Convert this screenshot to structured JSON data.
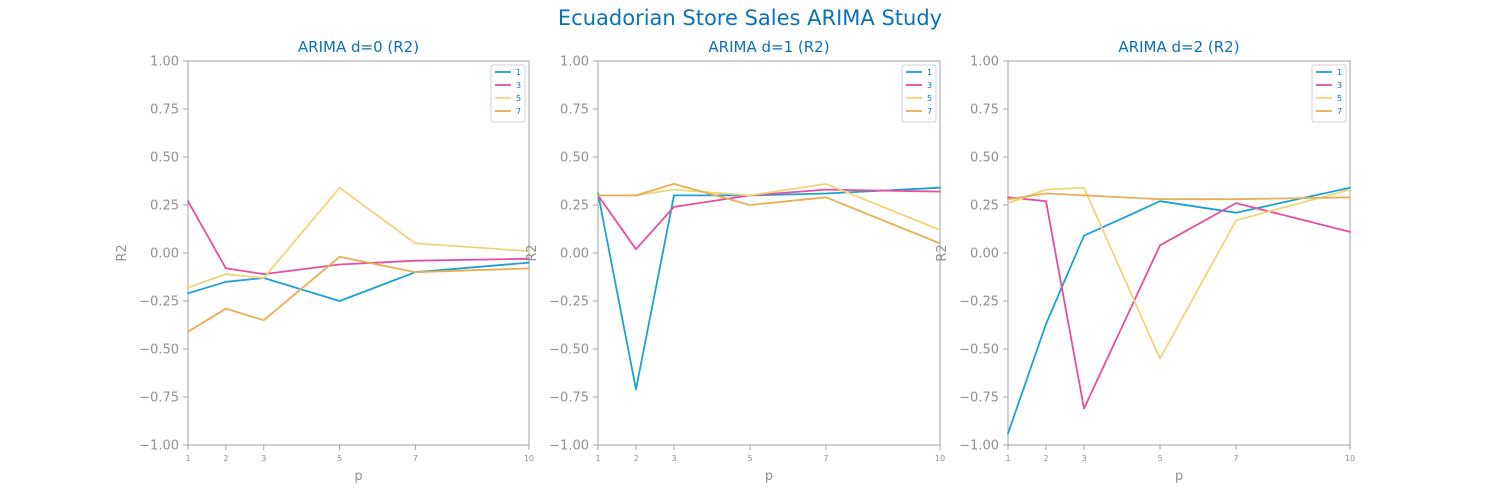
{
  "title": "Ecuadorian Store Sales ARIMA Study",
  "colors": {
    "title": "#0a72b6",
    "axis_text": "#909090",
    "spine": "#a0a0a0",
    "series": [
      "#1ba1d4",
      "#e54f9c",
      "#f0d47a",
      "#e8ae54"
    ]
  },
  "chart_data": [
    {
      "type": "line",
      "title": "ARIMA d=0 (R2)",
      "xlabel": "p",
      "ylabel": "R2",
      "x": [
        1,
        2,
        3,
        5,
        7,
        10
      ],
      "xticks": [
        "1",
        "2",
        "3",
        "5",
        "7",
        "10"
      ],
      "yticks": [
        "1.00",
        "0.75",
        "0.50",
        "0.25",
        "0.00",
        "−0.25",
        "−0.50",
        "−0.75",
        "−1.00"
      ],
      "xlim": [
        1,
        10
      ],
      "ylim": [
        -1.0,
        1.0
      ],
      "grid": false,
      "legend": "top-right",
      "series": [
        {
          "name": "1",
          "values": [
            -0.21,
            -0.15,
            -0.13,
            -0.25,
            -0.1,
            -0.05
          ]
        },
        {
          "name": "3",
          "values": [
            0.27,
            -0.08,
            -0.11,
            -0.06,
            -0.04,
            -0.03
          ]
        },
        {
          "name": "5",
          "values": [
            -0.18,
            -0.11,
            -0.13,
            0.34,
            0.05,
            0.01
          ]
        },
        {
          "name": "7",
          "values": [
            -0.41,
            -0.29,
            -0.35,
            -0.02,
            -0.1,
            -0.08
          ]
        }
      ]
    },
    {
      "type": "line",
      "title": "ARIMA d=1 (R2)",
      "xlabel": "p",
      "ylabel": "R2",
      "x": [
        1,
        2,
        3,
        5,
        7,
        10
      ],
      "xticks": [
        "1",
        "2",
        "3",
        "5",
        "7",
        "10"
      ],
      "yticks": [
        "1.00",
        "0.75",
        "0.50",
        "0.25",
        "0.00",
        "−0.25",
        "−0.50",
        "−0.75",
        "−1.00"
      ],
      "xlim": [
        1,
        10
      ],
      "ylim": [
        -1.0,
        1.0
      ],
      "grid": false,
      "legend": "top-right",
      "series": [
        {
          "name": "1",
          "values": [
            0.31,
            -0.71,
            0.3,
            0.3,
            0.31,
            0.34
          ]
        },
        {
          "name": "3",
          "values": [
            0.3,
            0.02,
            0.24,
            0.3,
            0.33,
            0.32
          ]
        },
        {
          "name": "5",
          "values": [
            0.3,
            0.3,
            0.33,
            0.3,
            0.36,
            0.12
          ]
        },
        {
          "name": "7",
          "values": [
            0.3,
            0.3,
            0.36,
            0.25,
            0.29,
            0.05
          ]
        }
      ]
    },
    {
      "type": "line",
      "title": "ARIMA d=2 (R2)",
      "xlabel": "p",
      "ylabel": "R2",
      "x": [
        1,
        2,
        3,
        5,
        7,
        10
      ],
      "xticks": [
        "1",
        "2",
        "3",
        "5",
        "7",
        "10"
      ],
      "yticks": [
        "1.00",
        "0.75",
        "0.50",
        "0.25",
        "0.00",
        "−0.25",
        "−0.50",
        "−0.75",
        "−1.00"
      ],
      "xlim": [
        1,
        10
      ],
      "ylim": [
        -1.0,
        1.0
      ],
      "grid": false,
      "legend": "top-right",
      "series": [
        {
          "name": "1",
          "values": [
            -0.94,
            -0.37,
            0.09,
            0.27,
            0.21,
            0.34
          ]
        },
        {
          "name": "3",
          "values": [
            0.29,
            0.27,
            -0.81,
            0.04,
            0.26,
            0.11
          ]
        },
        {
          "name": "5",
          "values": [
            0.26,
            0.33,
            0.34,
            -0.55,
            0.17,
            0.33
          ]
        },
        {
          "name": "7",
          "values": [
            0.28,
            0.31,
            0.3,
            0.28,
            0.28,
            0.29
          ]
        }
      ]
    }
  ]
}
